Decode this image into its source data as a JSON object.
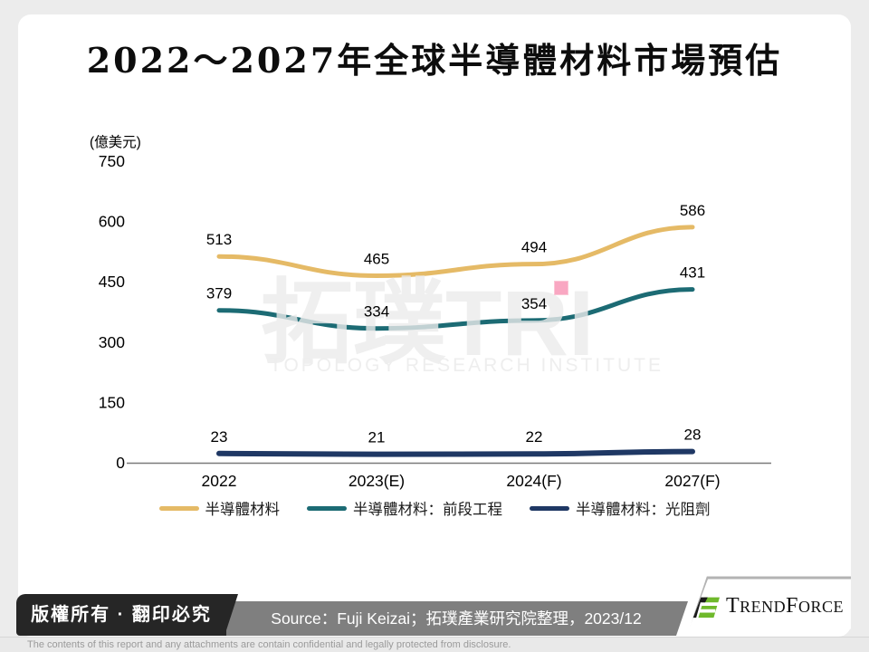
{
  "title": "2022～2027年全球半導體材料市場預估",
  "chart_data": {
    "type": "line",
    "title": "2022～2027年全球半導體材料市場預估",
    "unit_label": "(億美元)",
    "categories": [
      "2022",
      "2023(E)",
      "2024(F)",
      "2027(F)"
    ],
    "yticks": [
      0,
      150,
      300,
      450,
      600,
      750
    ],
    "ylim": [
      0,
      750
    ],
    "grid": false,
    "legend_position": "bottom",
    "series": [
      {
        "name": "半導體材料",
        "color": "#E5BA66",
        "values": [
          513,
          465,
          494,
          586
        ]
      },
      {
        "name": "半導體材料：前段工程",
        "color": "#1C6B74",
        "values": [
          379,
          334,
          354,
          431
        ]
      },
      {
        "name": "半導體材料：光阻劑",
        "color": "#1F3864",
        "values": [
          23,
          21,
          22,
          28
        ]
      }
    ]
  },
  "watermark": {
    "logo_text": "拓璞TRI",
    "subtitle": "TOPOLOGY RESEARCH INSTITUTE"
  },
  "annotations": {
    "pink_marker": {
      "color": "#F9A7C2"
    }
  },
  "footer": {
    "copyright": "版權所有 · 翻印必究",
    "source": "Source：Fuji Keizai；拓璞產業研究院整理，2023/12",
    "brand": {
      "name": "TrendForce",
      "text_parts": [
        "T",
        "REND",
        "F",
        "ORCE"
      ],
      "green": "#6FB92C",
      "black": "#1a1a1a"
    },
    "disclaimer": "The contents of this report and any attachments are contain confidential and legally protected from disclosure."
  }
}
